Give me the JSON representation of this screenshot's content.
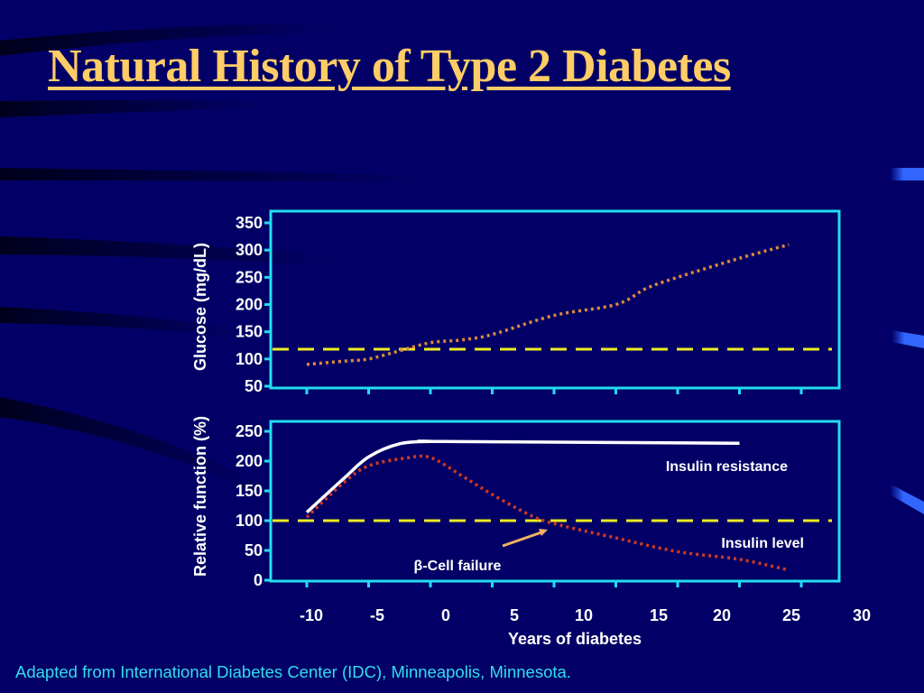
{
  "slide": {
    "title": "Natural History of Type 2 Diabetes",
    "caption": "Adapted from International Diabetes Center (IDC), Minneapolis, Minnesota."
  },
  "colors": {
    "background": "#020066",
    "title": "#ffcc66",
    "frame": "#22ddf0",
    "threshold": "#eeee22",
    "glucose": "#e08a3a",
    "insulin_resistance": "#ffffff",
    "insulin_level": "#d03a22",
    "arrow": "#f5b060",
    "caption": "#33ddee"
  },
  "chart_data": [
    {
      "type": "line",
      "title": "",
      "xlabel": "",
      "ylabel": "Glucose (mg/dL)",
      "xlim": [
        -10,
        30
      ],
      "ylim": [
        50,
        350
      ],
      "x_ticks": [
        -10,
        -5,
        0,
        5,
        10,
        15,
        20,
        25,
        30
      ],
      "y_ticks": [
        "50",
        "100",
        "150",
        "200",
        "250",
        "300",
        "350"
      ],
      "grid": false,
      "reference_line": {
        "y": 118,
        "style": "dashed"
      },
      "series": [
        {
          "name": "Glucose",
          "style": "dotted",
          "x": [
            -10,
            -7,
            -5,
            -2.5,
            0,
            2.5,
            5,
            10,
            15,
            17.5,
            20,
            25,
            29
          ],
          "y": [
            90,
            96,
            100,
            115,
            130,
            135,
            145,
            180,
            200,
            230,
            250,
            285,
            310
          ]
        }
      ]
    },
    {
      "type": "line",
      "title": "",
      "xlabel": "Years of diabetes",
      "ylabel": "Relative function (%)",
      "xlim": [
        -10,
        30
      ],
      "ylim": [
        0,
        250
      ],
      "x_ticks": [
        -10,
        -5,
        0,
        5,
        10,
        15,
        20,
        25,
        30
      ],
      "x_tick_labels": [
        "-10",
        "-5",
        "0",
        "5",
        "10",
        "15",
        "20",
        "25",
        "30"
      ],
      "y_ticks": [
        "0",
        "50",
        "100",
        "150",
        "200",
        "250"
      ],
      "grid": false,
      "reference_line": {
        "y": 100,
        "style": "dashed"
      },
      "series": [
        {
          "name": "Insulin resistance",
          "style": "solid",
          "x": [
            -10,
            -7,
            -5,
            -2.5,
            0,
            1,
            25
          ],
          "y": [
            114,
            171,
            207,
            229,
            233,
            233,
            230
          ]
        },
        {
          "name": "Insulin level",
          "style": "dotted",
          "x": [
            -10,
            -7,
            -5,
            -2,
            0,
            2.5,
            5,
            8,
            10,
            15,
            20,
            25,
            29
          ],
          "y": [
            106,
            164,
            192,
            205,
            206,
            176,
            144,
            110,
            95,
            71,
            48,
            35,
            17
          ]
        }
      ],
      "annotations": [
        {
          "text": "Insulin resistance",
          "series": "Insulin resistance"
        },
        {
          "text": "Insulin level",
          "series": "Insulin level"
        },
        {
          "text": "β-Cell failure",
          "arrow_to": {
            "x": 8.5,
            "y": 95
          }
        }
      ]
    }
  ]
}
